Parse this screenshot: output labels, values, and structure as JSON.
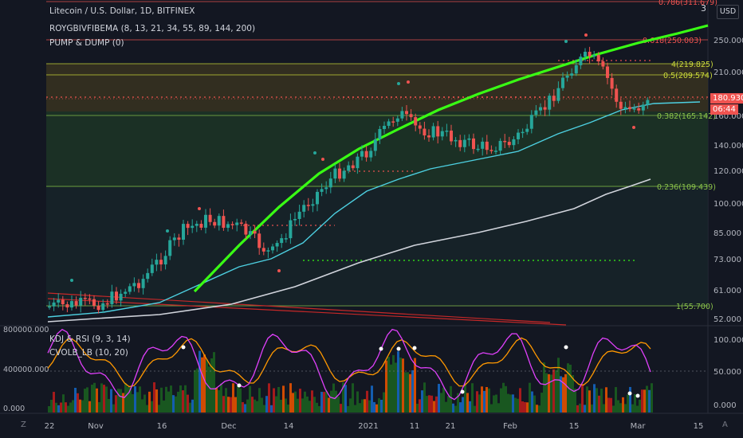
{
  "header": {
    "title": "Litecoin / U.S. Dollar, 1D, BITFINEX",
    "indicator1": "ROYGBIVFIBEMA (8, 13, 21, 34, 55, 89, 144, 200)",
    "indicator2": "PUMP & DUMP (0)",
    "currency_button": "USD",
    "scale_top_label": "3"
  },
  "lower_pane": {
    "indicator1": "KDJ & RSI (9, 3, 14)",
    "indicator2": "CVOLB_LB (10, 20)"
  },
  "price_axis": {
    "labels": [
      "250.000",
      "210.000",
      "160.000",
      "140.000",
      "120.000",
      "100.000",
      "85.000",
      "73.000",
      "61.000",
      "52.000"
    ],
    "current_price": "180.930",
    "countdown": "06:44"
  },
  "volume_axis": {
    "labels": [
      "800000.000",
      "400000.000",
      "0.000"
    ]
  },
  "osc_axis": {
    "labels": [
      "100.000",
      "50.000",
      "0.000"
    ]
  },
  "time_axis": {
    "labels": [
      "22",
      "Nov",
      "16",
      "Dec",
      "14",
      "2021",
      "11",
      "21",
      "Feb",
      "15",
      "Mar",
      "15"
    ]
  },
  "fib_levels": [
    {
      "label": "0.786(311.679)"
    },
    {
      "label": "0.618(250.003)"
    },
    {
      "label": "4(219.825)"
    },
    {
      "label": "0.5(209.574)"
    },
    {
      "label": "0.382(165.142)"
    },
    {
      "label": "0.236(109.439)"
    },
    {
      "label": "1(55.700)"
    }
  ],
  "buttons": {
    "goto_start": "Z",
    "auto_scale": "A"
  },
  "colors": {
    "up": "#26a69a",
    "down": "#ef5350",
    "ema_green": "#39ff14",
    "ema_teal": "#4dd0e1",
    "ema_white": "#d1d4dc",
    "bg": "#131722"
  }
}
